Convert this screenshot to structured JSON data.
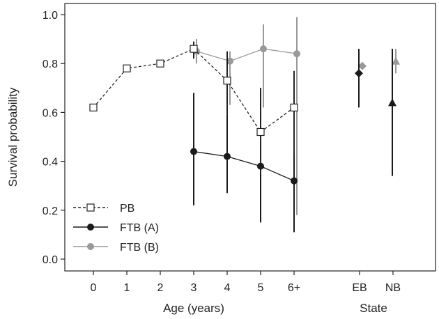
{
  "chart_data": {
    "type": "scatter",
    "ylabel": "Survival probability",
    "ylim": [
      0.0,
      1.0
    ],
    "y_ticks": [
      0.0,
      0.2,
      0.4,
      0.6,
      0.8,
      1.0
    ],
    "y_tick_labels": [
      "0.0",
      "0.2",
      "0.4",
      "0.6",
      "0.8",
      "1.0"
    ],
    "grid": false,
    "age_axis": {
      "label": "Age (years)",
      "categories": [
        "0",
        "1",
        "2",
        "3",
        "4",
        "5",
        "6+"
      ]
    },
    "state_axis": {
      "label": "State",
      "categories": [
        "EB",
        "NB"
      ]
    },
    "legend": {
      "position": "bottom-left",
      "entries": [
        {
          "series": 0,
          "label": "PB"
        },
        {
          "series": 1,
          "label": "FTB (A)"
        },
        {
          "series": 2,
          "label": "FTB (B)"
        }
      ]
    },
    "series": [
      {
        "name": "PB",
        "color": "#222222",
        "marker": "open-square",
        "line": "dashed",
        "points": [
          {
            "x": "0",
            "y": 0.62,
            "lo": 0.61,
            "hi": 0.63
          },
          {
            "x": "1",
            "y": 0.78,
            "lo": 0.77,
            "hi": 0.79
          },
          {
            "x": "2",
            "y": 0.8,
            "lo": 0.79,
            "hi": 0.81
          },
          {
            "x": "3",
            "y": 0.86,
            "lo": 0.82,
            "hi": 0.89
          },
          {
            "x": "4",
            "y": 0.73,
            "lo": 0.59,
            "hi": 0.85
          },
          {
            "x": "5",
            "y": 0.52,
            "lo": 0.35,
            "hi": 0.7
          },
          {
            "x": "6+",
            "y": 0.62,
            "lo": 0.43,
            "hi": 0.77
          }
        ]
      },
      {
        "name": "FTB (A)",
        "color": "#1a1a1a",
        "marker": "filled-circle",
        "line": "solid",
        "points": [
          {
            "x": "3",
            "y": 0.44,
            "lo": 0.22,
            "hi": 0.68
          },
          {
            "x": "4",
            "y": 0.42,
            "lo": 0.27,
            "hi": 0.59
          },
          {
            "x": "5",
            "y": 0.38,
            "lo": 0.15,
            "hi": 0.7
          },
          {
            "x": "6+",
            "y": 0.32,
            "lo": 0.11,
            "hi": 0.65
          }
        ]
      },
      {
        "name": "FTB (B)",
        "color": "#999999",
        "marker": "filled-circle",
        "line": "solid",
        "points": [
          {
            "x": "3",
            "y": 0.85,
            "lo": 0.8,
            "hi": 0.9
          },
          {
            "x": "4",
            "y": 0.81,
            "lo": 0.63,
            "hi": 0.85
          },
          {
            "x": "5",
            "y": 0.86,
            "lo": 0.62,
            "hi": 0.96
          },
          {
            "x": "6+",
            "y": 0.84,
            "lo": 0.18,
            "hi": 0.99
          }
        ]
      }
    ],
    "state_series": [
      {
        "x": "EB",
        "name": "FTB (A)",
        "color": "#1a1a1a",
        "marker": "diamond",
        "y": 0.76,
        "lo": 0.62,
        "hi": 0.86
      },
      {
        "x": "EB",
        "name": "FTB (B)",
        "color": "#999999",
        "marker": "diamond",
        "y": 0.79,
        "lo": 0.79,
        "hi": 0.79
      },
      {
        "x": "NB",
        "name": "FTB (A)",
        "color": "#1a1a1a",
        "marker": "triangle",
        "y": 0.64,
        "lo": 0.34,
        "hi": 0.86
      },
      {
        "x": "NB",
        "name": "FTB (B)",
        "color": "#999999",
        "marker": "triangle",
        "y": 0.81,
        "lo": 0.76,
        "hi": 0.86
      }
    ]
  }
}
